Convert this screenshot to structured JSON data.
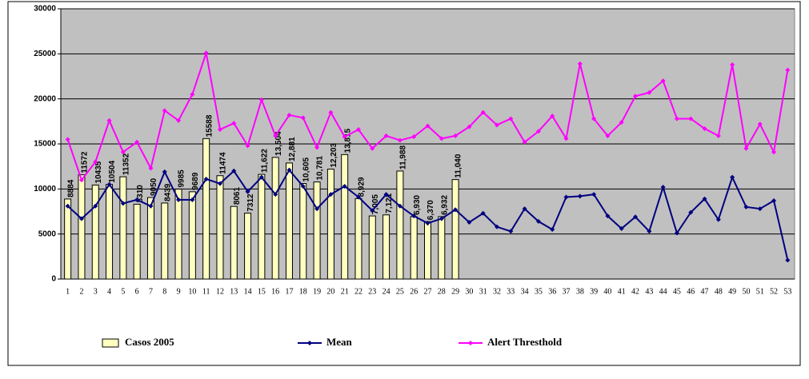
{
  "chart_data": {
    "type": "bar",
    "categories": [
      "1",
      "2",
      "3",
      "4",
      "5",
      "6",
      "7",
      "8",
      "9",
      "10",
      "11",
      "12",
      "13",
      "14",
      "15",
      "16",
      "17",
      "18",
      "19",
      "20",
      "21",
      "22",
      "23",
      "24",
      "25",
      "26",
      "27",
      "28",
      "29",
      "30",
      "31",
      "32",
      "33",
      "34",
      "35",
      "36",
      "37",
      "38",
      "39",
      "40",
      "41",
      "42",
      "43",
      "44",
      "45",
      "46",
      "47",
      "48",
      "49",
      "50",
      "51",
      "52",
      "53"
    ],
    "ylim": [
      0,
      30000
    ],
    "yticks": [
      0,
      5000,
      10000,
      15000,
      20000,
      25000,
      30000
    ],
    "grid": true,
    "legend": "bottom",
    "series": [
      {
        "name": "Casos 2005",
        "type": "bar",
        "color": "#ffffc0",
        "values": [
          8884,
          11572,
          10435,
          10504,
          11352,
          8310,
          9050,
          8439,
          9985,
          9689,
          15588,
          11474,
          8061,
          7312,
          11622,
          13504,
          12881,
          10605,
          10781,
          12203,
          13815,
          8929,
          7005,
          7121,
          11988,
          6930,
          6370,
          6932,
          11040,
          null,
          null,
          null,
          null,
          null,
          null,
          null,
          null,
          null,
          null,
          null,
          null,
          null,
          null,
          null,
          null,
          null,
          null,
          null,
          null,
          null,
          null,
          null,
          null
        ],
        "value_labels": [
          "8884",
          "11572",
          "10435",
          "10504",
          "11352",
          "8310",
          "9050",
          "8439",
          "9985",
          "9689",
          "15588",
          "11474",
          "8061",
          "7312",
          "11,622",
          "13,504",
          "12,881",
          "10,605",
          "10,781",
          "12,203",
          "13,815",
          "8,929",
          "7,005",
          "7,121",
          "11,988",
          "6,930",
          "6,370",
          "6,932",
          "11,040",
          null,
          null,
          null,
          null,
          null,
          null,
          null,
          null,
          null,
          null,
          null,
          null,
          null,
          null,
          null,
          null,
          null,
          null,
          null,
          null,
          null,
          null,
          null,
          null
        ]
      },
      {
        "name": "Mean",
        "type": "line",
        "color": "#000080",
        "values": [
          8100,
          6700,
          8100,
          10500,
          8400,
          8800,
          8100,
          11900,
          8800,
          8800,
          11100,
          10600,
          12000,
          9700,
          11300,
          9400,
          12100,
          10300,
          7800,
          9400,
          10300,
          9100,
          7600,
          9400,
          8100,
          7000,
          6200,
          6700,
          7700,
          6300,
          7300,
          5800,
          5300,
          7800,
          6400,
          5500,
          9100,
          9200,
          9400,
          7000,
          5600,
          6900,
          5300,
          10200,
          5100,
          7400,
          8900,
          6600,
          11300,
          8000,
          7800,
          8700,
          2100
        ]
      },
      {
        "name": "Alert Thresthold",
        "type": "line",
        "color": "#ff00ff",
        "values": [
          15500,
          11000,
          13000,
          17600,
          14100,
          15200,
          12300,
          18700,
          17600,
          20500,
          25100,
          16600,
          17300,
          14800,
          19900,
          15900,
          18200,
          17900,
          14600,
          18500,
          15800,
          16600,
          14500,
          15900,
          15400,
          15800,
          17000,
          15600,
          15900,
          16900,
          18500,
          17100,
          17800,
          15200,
          16400,
          18100,
          15600,
          23900,
          17800,
          15900,
          17400,
          20300,
          20700,
          22000,
          17800,
          17800,
          16700,
          15900,
          23800,
          14500,
          17200,
          14100,
          23200
        ]
      }
    ]
  }
}
